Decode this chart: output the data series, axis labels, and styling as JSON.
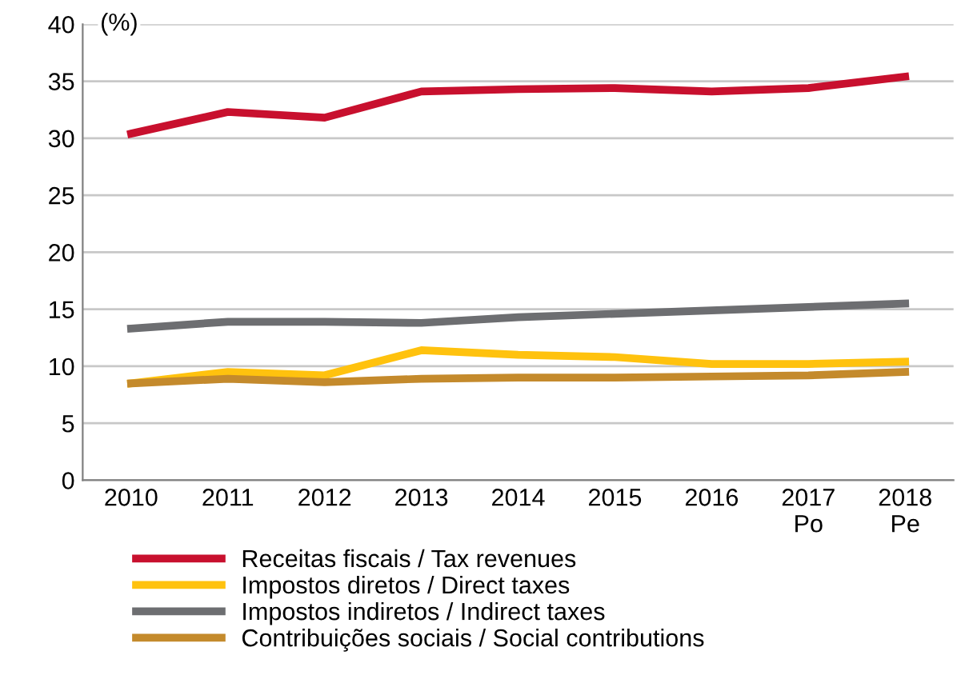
{
  "chart_data": {
    "type": "line",
    "ylabel": "(%)",
    "categories": [
      "2010",
      "2011",
      "2012",
      "2013",
      "2014",
      "2015",
      "2016",
      "2017\nPo",
      "2018\nPe"
    ],
    "series": [
      {
        "name": "Receitas fiscais / Tax revenues",
        "color": "#c8102e",
        "values": [
          30.4,
          32.3,
          31.8,
          34.1,
          34.3,
          34.4,
          34.1,
          34.4,
          35.4
        ]
      },
      {
        "name": "Impostos diretos / Direct taxes",
        "color": "#ffc20e",
        "values": [
          8.5,
          9.5,
          9.2,
          11.4,
          11.0,
          10.8,
          10.2,
          10.2,
          10.4
        ]
      },
      {
        "name": "Impostos indiretos / Indirect taxes",
        "color": "#6d6e71",
        "values": [
          13.3,
          13.9,
          13.9,
          13.8,
          14.3,
          14.6,
          14.9,
          15.2,
          15.5
        ]
      },
      {
        "name": "Contribuições sociais / Social contributions",
        "color": "#c48a2c",
        "values": [
          8.5,
          8.9,
          8.6,
          8.9,
          9.0,
          9.0,
          9.1,
          9.2,
          9.5
        ]
      }
    ],
    "ylim": [
      0,
      40
    ],
    "yticks": [
      0,
      5,
      10,
      15,
      20,
      25,
      30,
      35,
      40
    ],
    "grid": "y",
    "legend": "bottom",
    "marker": "none",
    "line_style": "solid"
  }
}
